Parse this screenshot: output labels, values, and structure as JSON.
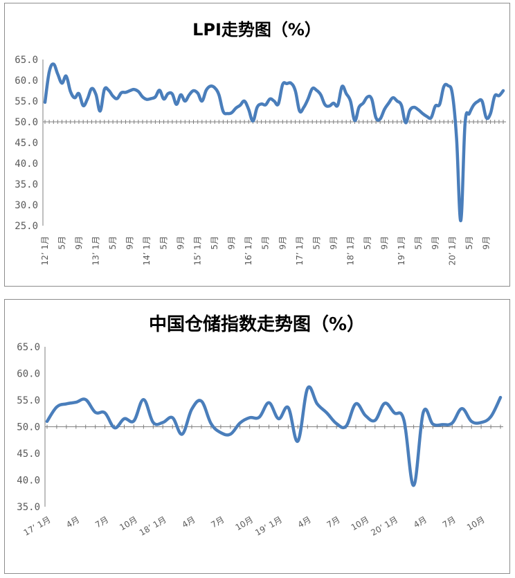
{
  "chart_data": [
    {
      "type": "line",
      "title": "LPI走势图（%）",
      "ylim": [
        25.0,
        65.0
      ],
      "yticks": [
        "65.0",
        "60.0",
        "55.0",
        "50.0",
        "45.0",
        "40.0",
        "35.0",
        "30.0",
        "25.0"
      ],
      "baseline": 50.0,
      "xtick_labels": [
        "12’ 1月",
        "5月",
        "9月",
        "13’ 1月",
        "5月",
        "9月",
        "14’ 1月",
        "5月",
        "9月",
        "15’ 1月",
        "5月",
        "9月",
        "16’ 1月",
        "5月",
        "9月",
        "17’ 1月",
        "5月",
        "9月",
        "18’ 1月",
        "5月",
        "9月",
        "19’ 1月",
        "5月",
        "9月",
        "20’ 1月",
        "5月",
        "9月"
      ],
      "xtick_index": [
        0,
        4,
        8,
        12,
        16,
        20,
        24,
        28,
        32,
        36,
        40,
        44,
        48,
        52,
        56,
        60,
        64,
        68,
        72,
        76,
        80,
        84,
        88,
        92,
        96,
        100,
        104
      ],
      "series": [
        {
          "color": "#4a7ebb",
          "values": [
            54.7,
            62.0,
            63.9,
            61.5,
            59.3,
            61.0,
            57.3,
            55.8,
            56.8,
            53.9,
            55.5,
            58.0,
            56.6,
            52.6,
            57.8,
            57.6,
            56.2,
            55.6,
            57.0,
            57.1,
            57.5,
            57.8,
            57.3,
            56.0,
            55.4,
            55.6,
            56.0,
            57.6,
            55.5,
            56.8,
            56.7,
            54.2,
            56.5,
            55.0,
            56.5,
            57.5,
            56.9,
            55.0,
            57.6,
            58.6,
            58.2,
            56.5,
            52.5,
            52.0,
            52.2,
            53.3,
            54.0,
            55.0,
            53.0,
            50.2,
            53.5,
            54.3,
            54.1,
            55.5,
            55.0,
            54.3,
            59.0,
            59.2,
            59.3,
            57.5,
            52.6,
            53.5,
            55.5,
            58.0,
            57.6,
            56.5,
            54.1,
            53.8,
            54.5,
            54.0,
            58.5,
            56.8,
            55.0,
            50.3,
            53.5,
            54.5,
            56.0,
            55.5,
            51.0,
            50.7,
            53.0,
            54.5,
            55.8,
            55.0,
            54.0,
            49.8,
            52.8,
            53.5,
            52.9,
            52.0,
            51.3,
            51.0,
            53.8,
            54.2,
            58.5,
            58.7,
            56.8,
            46.0,
            26.2,
            49.5,
            52.0,
            54.0,
            54.9,
            55.0,
            51.0,
            52.0,
            56.2,
            56.3,
            57.5
          ]
        }
      ]
    },
    {
      "type": "line",
      "title": "中国仓储指数走势图（%）",
      "ylim": [
        35.0,
        65.0
      ],
      "yticks": [
        "65.0",
        "60.0",
        "55.0",
        "50.0",
        "45.0",
        "40.0",
        "35.0"
      ],
      "baseline": 50.0,
      "xtick_labels": [
        "17’ 1月",
        "4月",
        "7月",
        "10月",
        "18’ 1月",
        "4月",
        "7月",
        "10月",
        "19’ 1月",
        "4月",
        "7月",
        "10月",
        "20’ 1月",
        "4月",
        "7月",
        "10月"
      ],
      "xtick_index": [
        0,
        3,
        6,
        9,
        12,
        15,
        18,
        21,
        24,
        27,
        30,
        33,
        36,
        39,
        42,
        45
      ],
      "series": [
        {
          "color": "#4a7ebb",
          "values": [
            51.0,
            53.7,
            54.3,
            54.6,
            55.1,
            52.7,
            52.6,
            49.8,
            51.5,
            51.1,
            55.1,
            50.8,
            50.8,
            51.7,
            48.6,
            53.3,
            54.8,
            50.6,
            48.9,
            48.6,
            50.7,
            51.7,
            51.8,
            54.5,
            51.5,
            53.6,
            47.3,
            57.2,
            54.3,
            52.6,
            50.6,
            50.1,
            54.3,
            52.1,
            51.2,
            54.4,
            52.6,
            51.2,
            39.0,
            52.7,
            50.5,
            50.4,
            50.7,
            53.4,
            51.0,
            50.8,
            51.9,
            55.5
          ]
        }
      ]
    }
  ]
}
